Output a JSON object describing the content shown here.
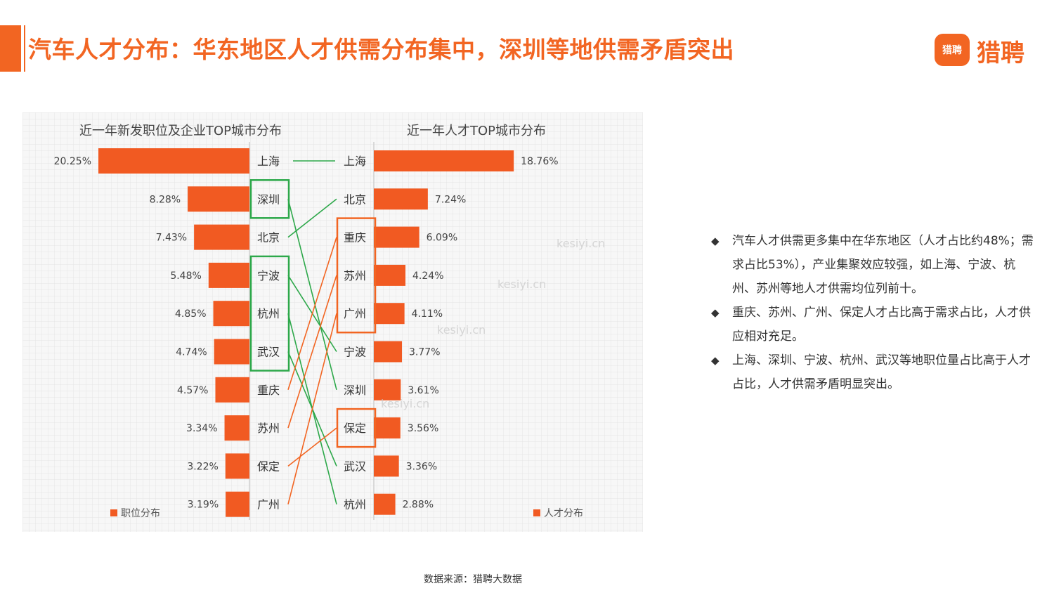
{
  "title": "汽车人才分布：华东地区人才供需分布集中，深圳等地供需矛盾突出",
  "logo": {
    "icon_text": "猎聘",
    "text": "猎聘",
    "color": "#f26522"
  },
  "watermark": "kesiyi.cn",
  "bullets": [
    "汽车人才供需更多集中在华东地区（人才占比约48%；需求占比53%），产业集聚效应较强，如上海、宁波、杭州、苏州等地人才供需均位列前十。",
    "重庆、苏州、广州、保定人才占比高于需求占比，人才供应相对充足。",
    "上海、深圳、宁波、杭州、武汉等地职位量占比高于人才占比，人才供需矛盾明显突出。"
  ],
  "source": "数据来源：猎聘大数据",
  "chart_data": [
    {
      "type": "bar",
      "orientation": "horizontal",
      "title": "近一年新发职位及企业TOP城市分布",
      "legend": "职位分布",
      "legend_position": "bottom-left",
      "unit": "%",
      "categories": [
        "上海",
        "深圳",
        "北京",
        "宁波",
        "杭州",
        "武汉",
        "重庆",
        "苏州",
        "保定",
        "广州"
      ],
      "values": [
        20.25,
        8.28,
        7.43,
        5.48,
        4.85,
        4.74,
        4.57,
        3.34,
        3.22,
        3.19
      ],
      "labels": [
        "20.25%",
        "8.28%",
        "7.43%",
        "5.48%",
        "4.85%",
        "4.74%",
        "4.57%",
        "3.34%",
        "3.22%",
        "3.19%"
      ],
      "color": "#f15a22",
      "highlight_boxes": [
        {
          "color": "#2da84a",
          "cities": [
            "深圳"
          ]
        },
        {
          "color": "#2da84a",
          "cities": [
            "宁波",
            "杭州",
            "武汉"
          ]
        }
      ]
    },
    {
      "type": "bar",
      "orientation": "horizontal",
      "title": "近一年人才TOP城市分布",
      "legend": "人才分布",
      "legend_position": "bottom-right",
      "unit": "%",
      "categories": [
        "上海",
        "北京",
        "重庆",
        "苏州",
        "广州",
        "宁波",
        "深圳",
        "保定",
        "武汉",
        "杭州"
      ],
      "values": [
        18.76,
        7.24,
        6.09,
        4.24,
        4.11,
        3.77,
        3.61,
        3.56,
        3.36,
        2.88
      ],
      "labels": [
        "18.76%",
        "7.24%",
        "6.09%",
        "4.24%",
        "4.11%",
        "3.77%",
        "3.61%",
        "3.56%",
        "3.36%",
        "2.88%"
      ],
      "color": "#f15a22",
      "highlight_boxes": [
        {
          "color": "#f26522",
          "cities": [
            "重庆",
            "苏州",
            "广州"
          ]
        },
        {
          "color": "#f26522",
          "cities": [
            "保定"
          ]
        }
      ]
    }
  ],
  "connections": [
    {
      "city": "上海",
      "color": "#2da84a"
    },
    {
      "city": "深圳",
      "color": "#2da84a"
    },
    {
      "city": "北京",
      "color": "#2da84a"
    },
    {
      "city": "宁波",
      "color": "#2da84a"
    },
    {
      "city": "杭州",
      "color": "#2da84a"
    },
    {
      "city": "武汉",
      "color": "#2da84a"
    },
    {
      "city": "重庆",
      "color": "#f26522"
    },
    {
      "city": "苏州",
      "color": "#f26522"
    },
    {
      "city": "保定",
      "color": "#f26522"
    },
    {
      "city": "广州",
      "color": "#f26522"
    }
  ],
  "colors": {
    "accent": "#f26522",
    "bar": "#f15a22",
    "green": "#2da84a",
    "text": "#333333",
    "grid": "#e6e6e6"
  }
}
